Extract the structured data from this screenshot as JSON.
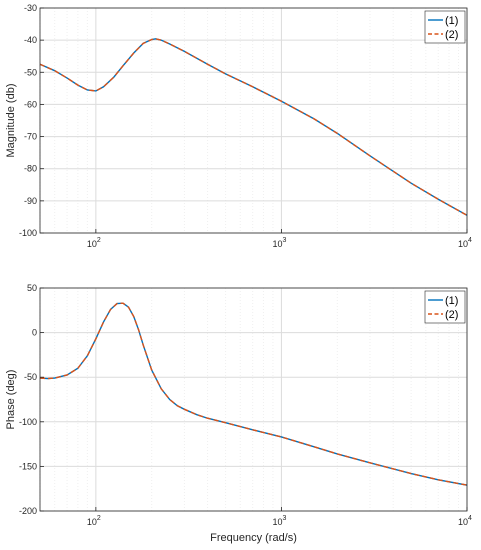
{
  "chart_data": [
    {
      "type": "line",
      "xscale": "log",
      "xlim": [
        50,
        10000
      ],
      "ylim": [
        -100,
        -30
      ],
      "xlabel": "",
      "ylabel": "Magnitude (db)",
      "grid": true,
      "legend": "top-right",
      "x_ticks": [
        {
          "base": "10",
          "exp": "2"
        },
        {
          "base": "10",
          "exp": "3"
        },
        {
          "base": "10",
          "exp": "4"
        }
      ],
      "y_ticks": [
        "-30",
        "-40",
        "-50",
        "-60",
        "-70",
        "-80",
        "-90",
        "-100"
      ],
      "series": [
        {
          "name": "(1)",
          "color": "#0072BD",
          "style": "solid",
          "x": [
            50,
            60,
            70,
            80,
            90,
            100,
            110,
            125,
            140,
            160,
            180,
            200,
            210,
            225,
            250,
            300,
            400,
            500,
            700,
            1000,
            1500,
            2000,
            3000,
            5000,
            7000,
            10000
          ],
          "y": [
            -47.5,
            -49.5,
            -51.8,
            -54,
            -55.5,
            -55.8,
            -54.5,
            -51.5,
            -48,
            -44,
            -41,
            -39.8,
            -39.6,
            -40,
            -41.2,
            -43.5,
            -47.5,
            -50.5,
            -54.5,
            -59,
            -64.5,
            -69,
            -76,
            -84.5,
            -89.5,
            -94.5
          ]
        },
        {
          "name": "(2)",
          "color": "#D95319",
          "style": "dashed",
          "x": [
            50,
            60,
            70,
            80,
            90,
            100,
            110,
            125,
            140,
            160,
            180,
            200,
            210,
            225,
            250,
            300,
            400,
            500,
            700,
            1000,
            1500,
            2000,
            3000,
            5000,
            7000,
            10000
          ],
          "y": [
            -47.5,
            -49.5,
            -51.8,
            -54,
            -55.5,
            -55.8,
            -54.5,
            -51.5,
            -48,
            -44,
            -41,
            -39.8,
            -39.6,
            -40,
            -41.2,
            -43.5,
            -47.5,
            -50.5,
            -54.5,
            -59,
            -64.5,
            -69,
            -76,
            -84.5,
            -89.5,
            -94.5
          ]
        }
      ]
    },
    {
      "type": "line",
      "xscale": "log",
      "xlim": [
        50,
        10000
      ],
      "ylim": [
        -200,
        50
      ],
      "xlabel": "Frequency (rad/s)",
      "ylabel": "Phase (deg)",
      "grid": true,
      "legend": "top-right",
      "x_ticks": [
        {
          "base": "10",
          "exp": "2"
        },
        {
          "base": "10",
          "exp": "3"
        },
        {
          "base": "10",
          "exp": "4"
        }
      ],
      "y_ticks": [
        "50",
        "0",
        "-50",
        "-100",
        "-150",
        "-200"
      ],
      "series": [
        {
          "name": "(1)",
          "color": "#0072BD",
          "style": "solid",
          "x": [
            50,
            55,
            60,
            70,
            80,
            90,
            100,
            110,
            120,
            130,
            140,
            150,
            160,
            170,
            180,
            200,
            225,
            250,
            275,
            300,
            350,
            400,
            500,
            700,
            1000,
            1500,
            2000,
            3000,
            5000,
            7000,
            10000
          ],
          "y": [
            -51,
            -51.5,
            -51,
            -47.5,
            -40,
            -26,
            -7,
            12,
            26,
            32.5,
            33,
            28.5,
            18,
            3,
            -14,
            -42,
            -63,
            -75,
            -82,
            -86,
            -92,
            -96,
            -101,
            -109,
            -117,
            -128,
            -136,
            -146,
            -158,
            -165,
            -171
          ]
        },
        {
          "name": "(2)",
          "color": "#D95319",
          "style": "dashed",
          "x": [
            50,
            55,
            60,
            70,
            80,
            90,
            100,
            110,
            120,
            130,
            140,
            150,
            160,
            170,
            180,
            200,
            225,
            250,
            275,
            300,
            350,
            400,
            500,
            700,
            1000,
            1500,
            2000,
            3000,
            5000,
            7000,
            10000
          ],
          "y": [
            -51,
            -51.5,
            -51,
            -47.5,
            -40,
            -26,
            -7,
            12,
            26,
            32.5,
            33,
            28.5,
            18,
            3,
            -14,
            -42,
            -63,
            -75,
            -82,
            -86,
            -92,
            -96,
            -101,
            -109,
            -117,
            -128,
            -136,
            -146,
            -158,
            -165,
            -171
          ]
        }
      ]
    }
  ]
}
